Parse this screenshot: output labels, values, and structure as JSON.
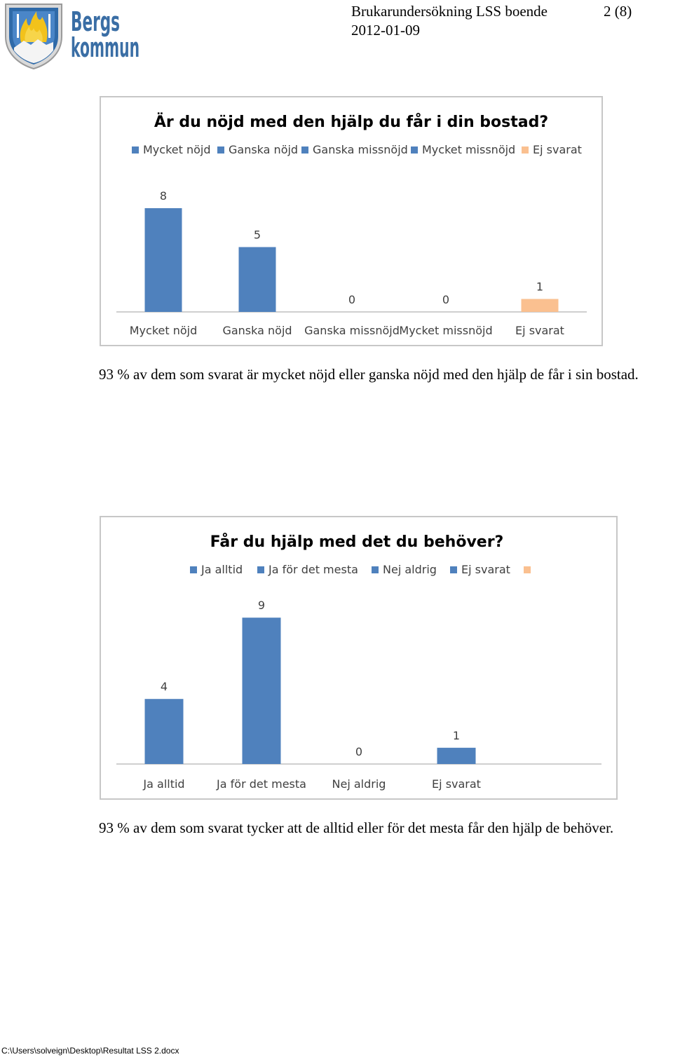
{
  "header": {
    "logo_text_line1": "Bergs",
    "logo_text_line2": "kommun",
    "doc_title": "Brukarundersökning LSS boende",
    "page_label": "2 (8)",
    "date": "2012-01-09"
  },
  "colors": {
    "bar_blue": "#4f81bd",
    "bar_peach": "#fac090",
    "frame": "#c7c7c7",
    "axis": "#bfbfbf",
    "logo_blue": "#3a6ea5"
  },
  "chart_data": [
    {
      "type": "bar",
      "title": "Är du nöjd med den hjälp du får i din bostad?",
      "categories": [
        "Mycket nöjd",
        "Ganska nöjd",
        "Ganska missnöjd",
        "Mycket missnöjd",
        "Ej svarat"
      ],
      "values": [
        8,
        5,
        0,
        0,
        1
      ],
      "data_labels": [
        "8",
        "5",
        "0",
        "0",
        "1"
      ],
      "bar_colors": [
        "#4f81bd",
        "#4f81bd",
        "#4f81bd",
        "#4f81bd",
        "#fac090"
      ],
      "legend": [
        {
          "label": "Mycket nöjd",
          "color": "#4f81bd"
        },
        {
          "label": "Ganska nöjd",
          "color": "#4f81bd"
        },
        {
          "label": "Ganska missnöjd",
          "color": "#4f81bd"
        },
        {
          "label": "Mycket missnöjd",
          "color": "#4f81bd"
        },
        {
          "label": "Ej svarat",
          "color": "#fac090"
        }
      ],
      "legend_position": "top",
      "grid": false,
      "ylim": [
        0,
        8
      ]
    },
    {
      "type": "bar",
      "title": "Får du hjälp med det du behöver?",
      "categories": [
        "Ja alltid",
        "Ja för det mesta",
        "Nej aldrig",
        "Ej svarat"
      ],
      "values": [
        4,
        9,
        0,
        1
      ],
      "data_labels": [
        "4",
        "9",
        "0",
        "1"
      ],
      "bar_colors": [
        "#4f81bd",
        "#4f81bd",
        "#4f81bd",
        "#4f81bd"
      ],
      "legend": [
        {
          "label": "Ja alltid",
          "color": "#4f81bd"
        },
        {
          "label": "Ja för det mesta",
          "color": "#4f81bd"
        },
        {
          "label": "Nej aldrig",
          "color": "#4f81bd"
        },
        {
          "label": "Ej svarat",
          "color": "#4f81bd"
        },
        {
          "label": "",
          "color": "#fac090"
        }
      ],
      "legend_position": "top",
      "grid": false,
      "ylim": [
        0,
        9
      ]
    }
  ],
  "body": {
    "paragraph1": "93 % av dem som svarat är mycket nöjd eller ganska nöjd med den hjälp de får i sin bostad.",
    "paragraph2": "93 % av dem som svarat tycker att de alltid eller för det mesta får den hjälp de behöver."
  },
  "footer": {
    "file_path": "C:\\Users\\solveign\\Desktop\\Resultat LSS 2.docx"
  }
}
